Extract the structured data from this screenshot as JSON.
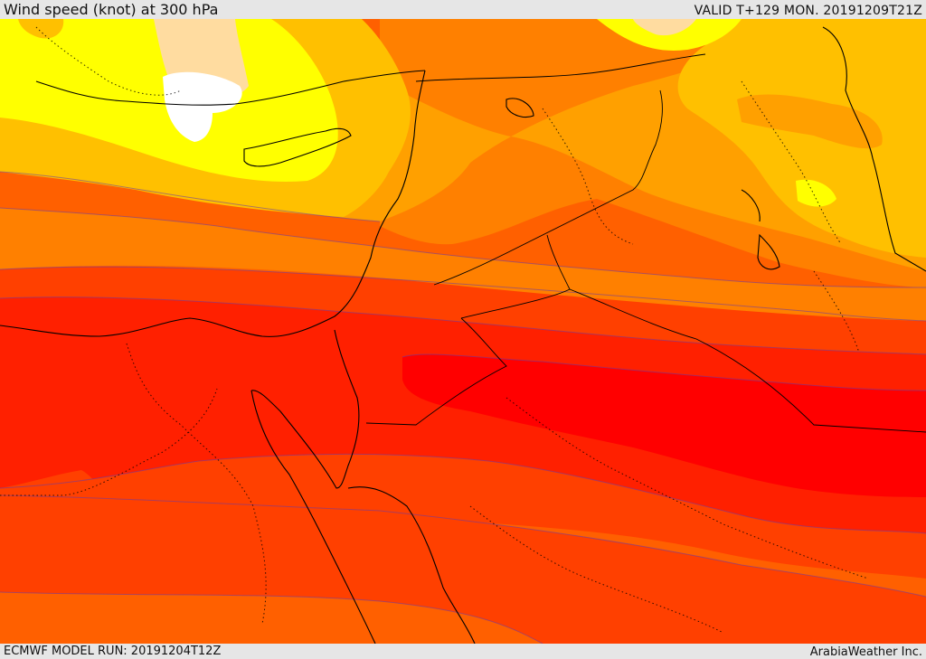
{
  "header": {
    "title": "Wind speed (knot) at 300 hPa",
    "valid": "VALID T+129 MON. 20191209T21Z"
  },
  "footer": {
    "model_run": "ECMWF MODEL RUN: 20191204T12Z",
    "brand": "ArabiaWeather Inc."
  },
  "map": {
    "field": "wind speed at 300 hPa",
    "colors": {
      "white": "#ffffff",
      "peach": "#ffdca0",
      "yellow": "#ffff00",
      "gold": "#ffc000",
      "amber": "#ffa000",
      "orange": "#ff8000",
      "dark_orange": "#ff6000",
      "orange_red": "#ff4000",
      "red_orange": "#ff2000",
      "red": "#ff0000",
      "contour": "#7a3cc8",
      "coastline": "#000000"
    }
  }
}
